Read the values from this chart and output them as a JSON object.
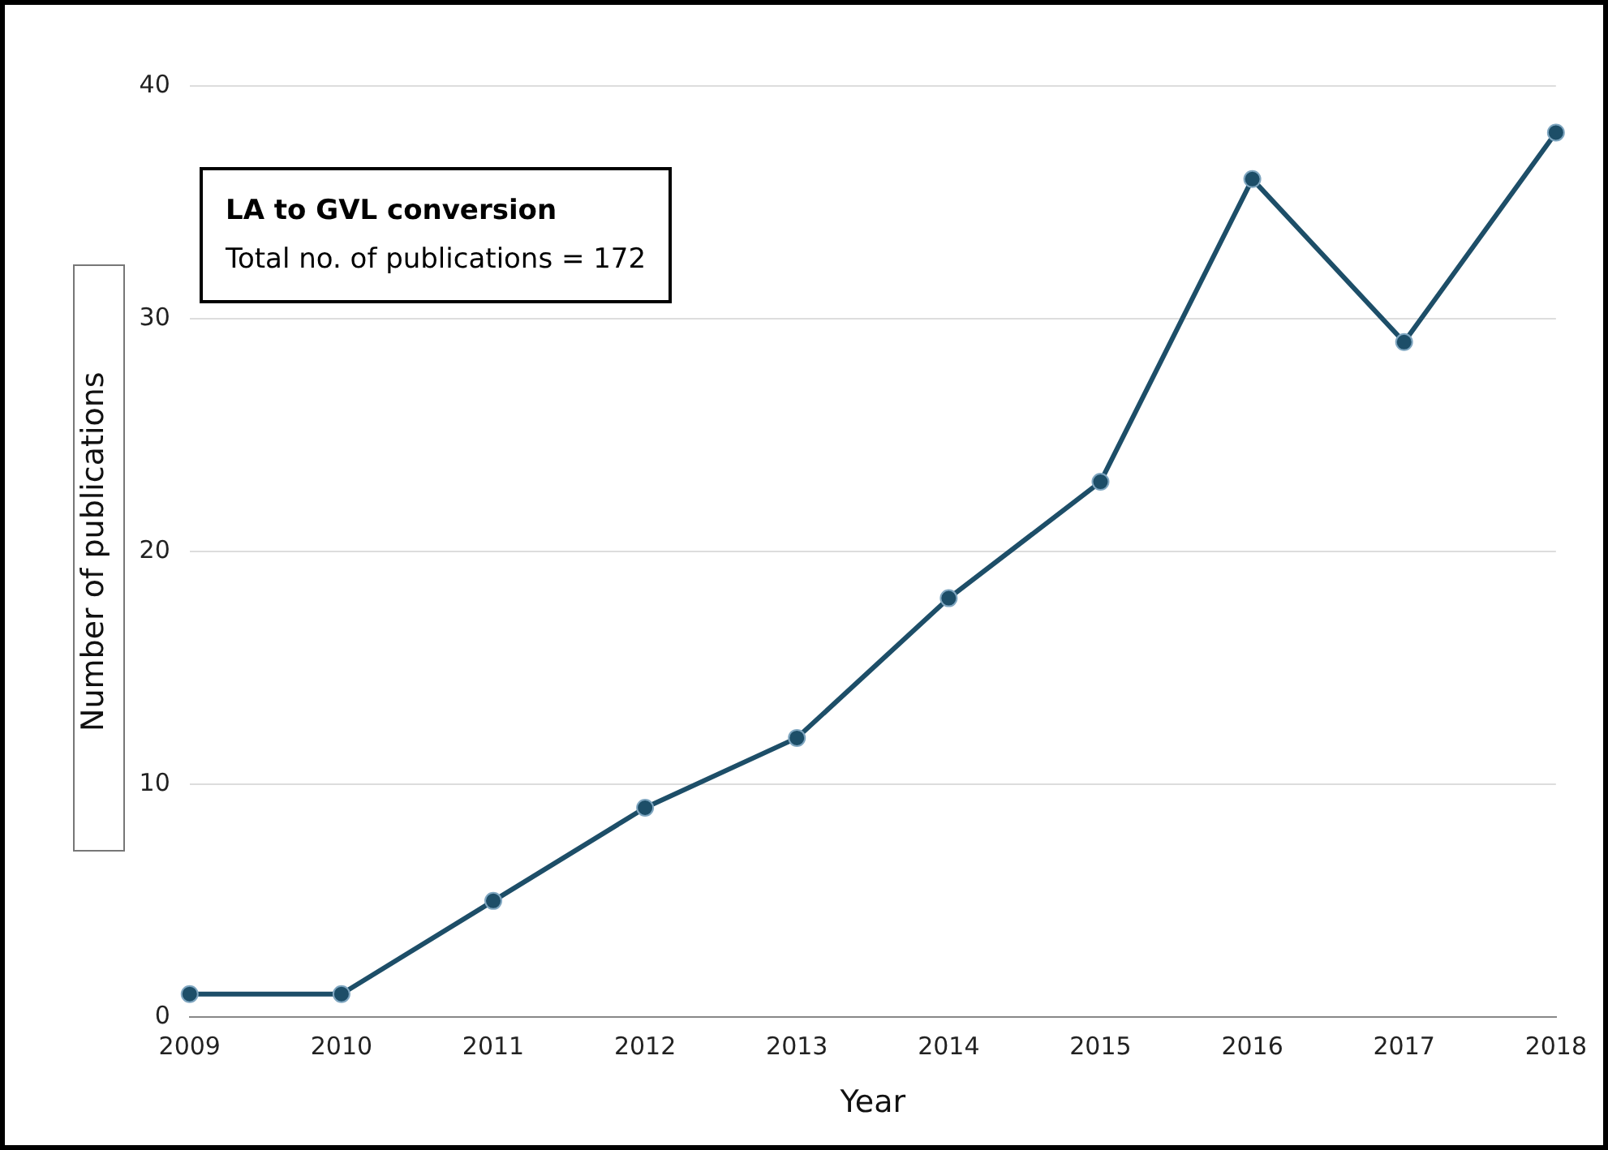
{
  "chart_data": {
    "type": "line",
    "xlabel": "Year",
    "ylabel": "Number of publications",
    "annotations": [
      "LA to GVL conversion",
      "Total no. of publications = 172"
    ],
    "categories": [
      "2009",
      "2010",
      "2011",
      "2012",
      "2013",
      "2014",
      "2015",
      "2016",
      "2017",
      "2018"
    ],
    "series": [
      {
        "color": "#1d4e68",
        "values": [
          1,
          1,
          5,
          9,
          12,
          18,
          23,
          36,
          29,
          38
        ]
      }
    ],
    "ylim": [
      0,
      40
    ],
    "yticks": [
      0,
      10,
      20,
      30,
      40
    ],
    "grid": "y",
    "legend": false,
    "marker": "circle",
    "line_style": "solid"
  }
}
